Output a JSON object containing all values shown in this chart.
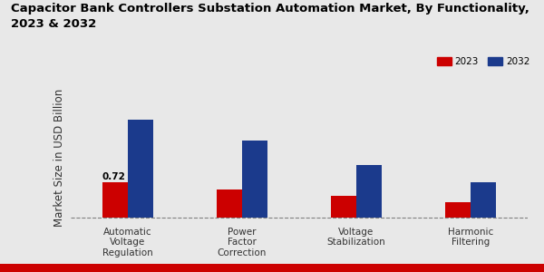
{
  "title": "Capacitor Bank Controllers Substation Automation Market, By Functionality,\n2023 & 2032",
  "ylabel": "Market Size in USD Billion",
  "categories": [
    "Automatic\nVoltage\nRegulation",
    "Power\nFactor\nCorrection",
    "Voltage\nStabilization",
    "Harmonic\nFiltering"
  ],
  "values_2023": [
    0.72,
    0.57,
    0.44,
    0.32
  ],
  "values_2032": [
    1.95,
    1.55,
    1.05,
    0.72
  ],
  "color_2023": "#cc0000",
  "color_2032": "#1b3a8c",
  "bar_width": 0.22,
  "annotation_text": "0.72",
  "annotation_bar": 0,
  "background_color": "#e8e8e8",
  "legend_labels": [
    "2023",
    "2032"
  ],
  "title_fontsize": 9.5,
  "ylabel_fontsize": 8.5,
  "tick_fontsize": 7.5,
  "ylim_max": 2.5
}
